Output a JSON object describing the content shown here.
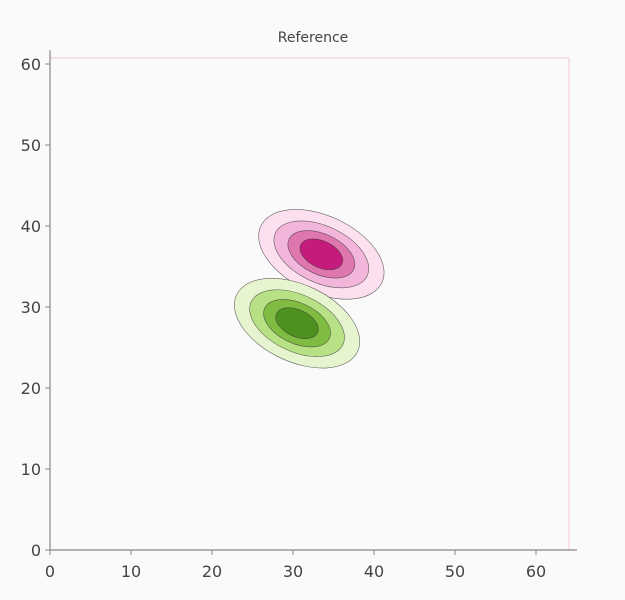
{
  "chart_data": {
    "type": "contour",
    "title": "Reference",
    "xlabel": "",
    "ylabel": "",
    "xlim": [
      0,
      64
    ],
    "ylim": [
      0,
      64
    ],
    "x_ticks": [
      0,
      10,
      20,
      30,
      40,
      50,
      60
    ],
    "y_ticks": [
      0,
      10,
      20,
      30,
      40,
      50,
      60
    ],
    "grid": false,
    "colormap": "PiYG",
    "positive_levels": [
      {
        "level": 1,
        "color": "#fde0ef"
      },
      {
        "level": 2,
        "color": "#f1b6da"
      },
      {
        "level": 3,
        "color": "#de77ae"
      },
      {
        "level": 4,
        "color": "#c51b7d"
      }
    ],
    "negative_levels": [
      {
        "level": 1,
        "color": "#e6f5d0"
      },
      {
        "level": 2,
        "color": "#b8e186"
      },
      {
        "level": 3,
        "color": "#7fbc41"
      },
      {
        "level": 4,
        "color": "#4d9221"
      }
    ],
    "lobes": [
      {
        "sign": "positive",
        "center": [
          33.5,
          36.5
        ],
        "angle_deg": -25,
        "rings": [
          {
            "rx": 16.5,
            "ry": 9.5
          },
          {
            "rx": 12.5,
            "ry": 7
          },
          {
            "rx": 8.8,
            "ry": 5
          },
          {
            "rx": 5.6,
            "ry": 3.3
          }
        ]
      },
      {
        "sign": "negative",
        "center": [
          30.5,
          28.0
        ],
        "angle_deg": -25,
        "rings": [
          {
            "rx": 16.5,
            "ry": 9.5
          },
          {
            "rx": 12.5,
            "ry": 7
          },
          {
            "rx": 8.8,
            "ry": 5
          },
          {
            "rx": 5.6,
            "ry": 3.3
          }
        ]
      }
    ]
  }
}
